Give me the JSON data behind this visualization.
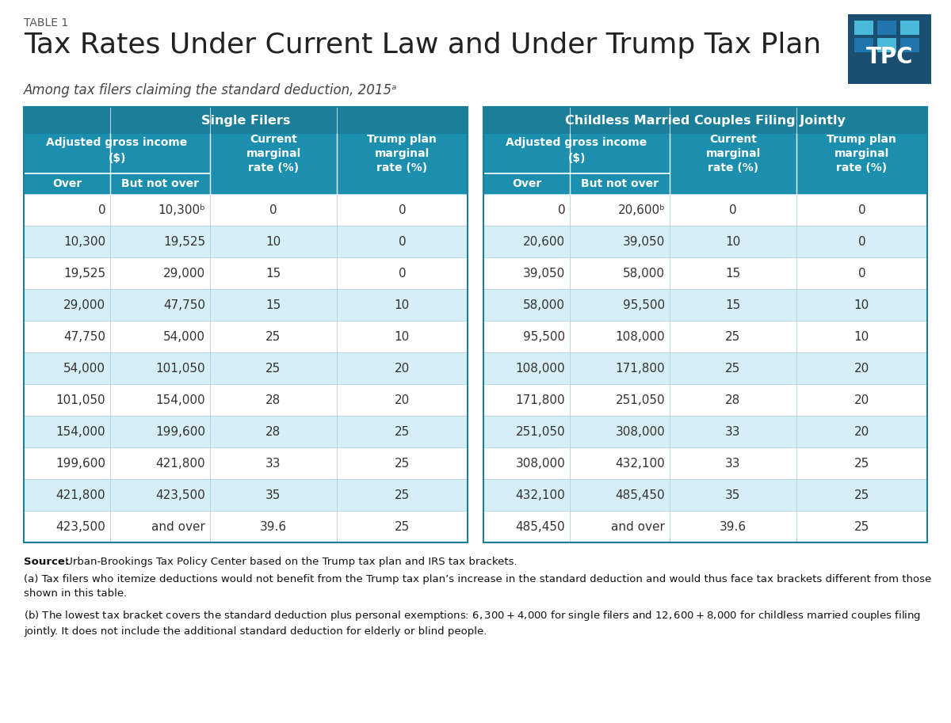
{
  "table_label": "TABLE 1",
  "title": "Tax Rates Under Current Law and Under Trump Tax Plan",
  "subtitle": "Among tax filers claiming the standard deduction, 2015ᵃ",
  "header_dark_bg": "#1b7f99",
  "header_mid_bg": "#1b8fad",
  "row_bg_light": "#d6eef5",
  "row_bg_white": "#ffffff",
  "text_dark": "#333333",
  "text_white": "#ffffff",
  "border_color": "#1b7f99",
  "inner_line_color": "#ffffff",
  "single_data": [
    [
      "0",
      "10,300ᵇ",
      "0",
      "0"
    ],
    [
      "10,300",
      "19,525",
      "10",
      "0"
    ],
    [
      "19,525",
      "29,000",
      "15",
      "0"
    ],
    [
      "29,000",
      "47,750",
      "15",
      "10"
    ],
    [
      "47,750",
      "54,000",
      "25",
      "10"
    ],
    [
      "54,000",
      "101,050",
      "25",
      "20"
    ],
    [
      "101,050",
      "154,000",
      "28",
      "20"
    ],
    [
      "154,000",
      "199,600",
      "28",
      "25"
    ],
    [
      "199,600",
      "421,800",
      "33",
      "25"
    ],
    [
      "421,800",
      "423,500",
      "35",
      "25"
    ],
    [
      "423,500",
      "and over",
      "39.6",
      "25"
    ]
  ],
  "married_data": [
    [
      "0",
      "20,600ᵇ",
      "0",
      "0"
    ],
    [
      "20,600",
      "39,050",
      "10",
      "0"
    ],
    [
      "39,050",
      "58,000",
      "15",
      "0"
    ],
    [
      "58,000",
      "95,500",
      "15",
      "10"
    ],
    [
      "95,500",
      "108,000",
      "25",
      "10"
    ],
    [
      "108,000",
      "171,800",
      "25",
      "20"
    ],
    [
      "171,800",
      "251,050",
      "28",
      "20"
    ],
    [
      "251,050",
      "308,000",
      "33",
      "20"
    ],
    [
      "308,000",
      "432,100",
      "33",
      "25"
    ],
    [
      "432,100",
      "485,450",
      "35",
      "25"
    ],
    [
      "485,450",
      "and over",
      "39.6",
      "25"
    ]
  ],
  "footnote_source_bold": "Source:",
  "footnote_source_rest": " Urban-Brookings Tax Policy Center based on the Trump tax plan and IRS tax brackets.",
  "footnote_a": "(a) Tax filers who itemize deductions would not benefit from the Trump tax plan’s increase in the standard deduction and would thus face tax brackets different from those shown in this table.",
  "footnote_b": "(b) The lowest tax bracket covers the standard deduction plus personal exemptions: $6,300 + $4,000 for single filers and $12,600 + $8,000 for childless married couples filing jointly. It does not include the additional standard deduction for elderly or blind people.",
  "tpc_bg": "#1a4f72",
  "tpc_grid_dark": "#2176ae",
  "tpc_grid_light": "#4ab8d8",
  "background_color": "#ffffff"
}
